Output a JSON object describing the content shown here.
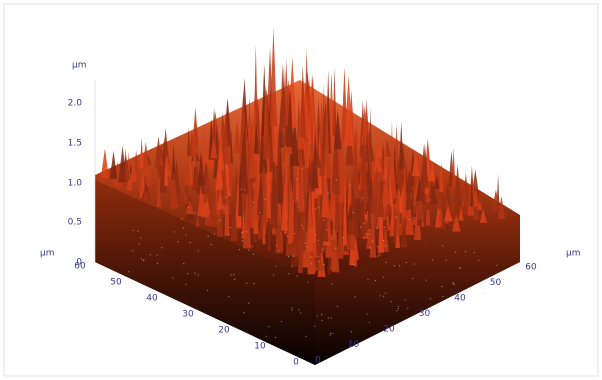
{
  "z_axis": {
    "unit": "µm",
    "ticks": [
      "0",
      "0.5",
      "1.0",
      "1.5",
      "2.0"
    ]
  },
  "left_axis": {
    "unit": "µm",
    "ticks": [
      "60",
      "50",
      "40",
      "30",
      "20",
      "10",
      "0"
    ]
  },
  "right_axis": {
    "unit": "µm",
    "ticks": [
      "0",
      "10",
      "20",
      "30",
      "40",
      "50",
      "60"
    ]
  }
}
